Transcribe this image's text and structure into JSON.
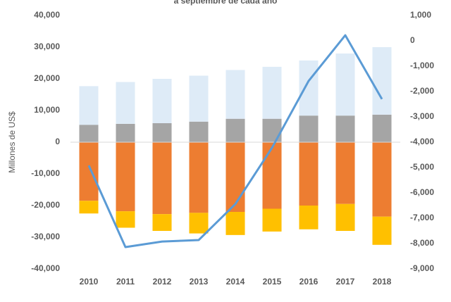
{
  "chart_data": {
    "type": "bar",
    "title": "a septiembre de cada año",
    "y_label": "Millones de US$",
    "categories": [
      "2010",
      "2011",
      "2012",
      "2013",
      "2014",
      "2015",
      "2016",
      "2017",
      "2018"
    ],
    "series": [
      {
        "color": "#a5a5a5",
        "values": [
          5500,
          5800,
          6000,
          6500,
          7400,
          7400,
          8400,
          8400,
          8700
        ]
      },
      {
        "color": "#deebf7",
        "values": [
          12200,
          13200,
          14000,
          14500,
          15400,
          16400,
          17400,
          19600,
          21300
        ]
      },
      {
        "color": "#ed7d31",
        "values": [
          -18500,
          -21800,
          -22700,
          -22300,
          -22000,
          -21000,
          -20000,
          -19500,
          -23500
        ]
      },
      {
        "color": "#ffc000",
        "values": [
          -4000,
          -5200,
          -5300,
          -6500,
          -7300,
          -7200,
          -7500,
          -8500,
          -8900
        ]
      },
      {
        "type": "line",
        "axis": "y2",
        "color": "#5b9bd5",
        "values": [
          -4920,
          -8140,
          -7920,
          -7860,
          -6440,
          -4220,
          -1580,
          220,
          -2300
        ]
      }
    ],
    "ylim": [
      -40000,
      40000
    ],
    "yticks": [
      {
        "value": -40000,
        "label": "-40,000"
      },
      {
        "value": -30000,
        "label": "-30,000"
      },
      {
        "value": -20000,
        "label": "-20,000"
      },
      {
        "value": -10000,
        "label": "-10,000"
      },
      0,
      {
        "value": 10000,
        "label": "10,000"
      },
      {
        "value": 20000,
        "label": "20,000"
      },
      {
        "value": 30000,
        "label": "30,000"
      },
      {
        "value": 40000,
        "label": "40,000"
      }
    ],
    "y2lim": [
      -9000,
      1000
    ],
    "y2ticks": [
      {
        "value": -9000,
        "label": "-9,000"
      },
      {
        "value": -8000,
        "label": "-8,000"
      },
      {
        "value": -7000,
        "label": "-7,000"
      },
      {
        "value": -6000,
        "label": "-6,000"
      },
      {
        "value": -5000,
        "label": "-5,000"
      },
      {
        "value": -4000,
        "label": "-4,000"
      },
      {
        "value": -3000,
        "label": "-3,000"
      },
      {
        "value": -2000,
        "label": "-2,000"
      },
      {
        "value": -1000,
        "label": "-1,000"
      },
      0,
      {
        "value": 1000,
        "label": "1,000"
      }
    ],
    "grid": false
  }
}
